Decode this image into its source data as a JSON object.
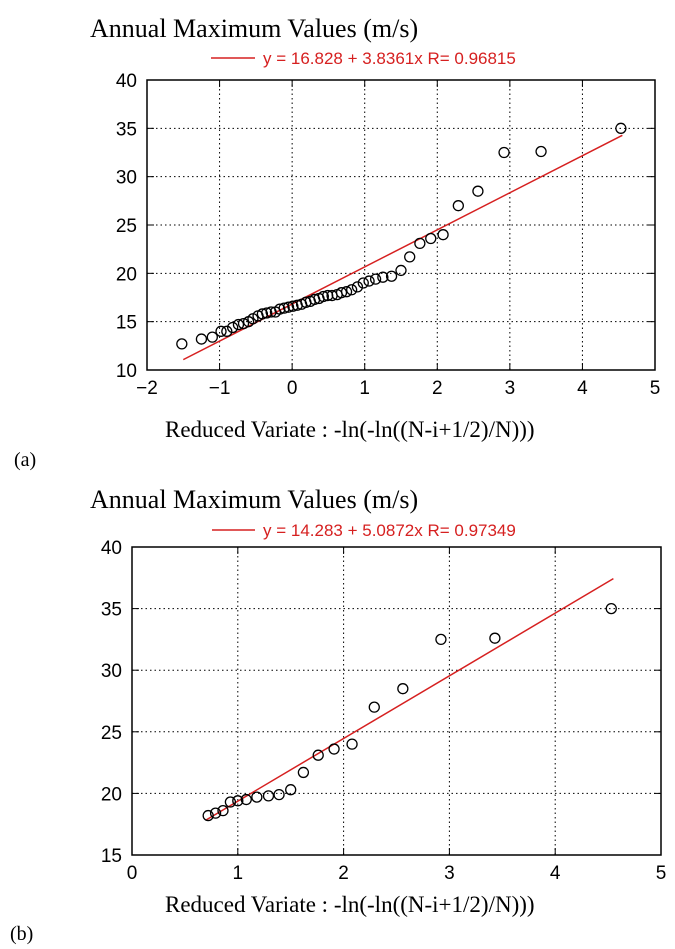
{
  "chart_data": [
    {
      "type": "scatter",
      "panel_label": "(a)",
      "title": "Annual Maximum Values (m/s)",
      "xlabel": "Reduced Variate : -ln(-ln((N-i+1/2)/N)))",
      "ylabel": "",
      "xlim": [
        -2,
        5
      ],
      "ylim": [
        10,
        40
      ],
      "xticks": [
        "−2",
        "−1",
        "0",
        "1",
        "2",
        "3",
        "4",
        "5"
      ],
      "yticks": [
        "10",
        "15",
        "20",
        "25",
        "30",
        "35",
        "40"
      ],
      "grid": true,
      "legend": {
        "text": "y = 16.828 + 3.8361x    R= 0.96815",
        "color": "#d62020"
      },
      "fit": {
        "intercept": 16.828,
        "slope": 3.8361,
        "x_range": [
          -1.5,
          4.55
        ]
      },
      "points": [
        [
          -1.52,
          12.7
        ],
        [
          -1.25,
          13.2
        ],
        [
          -1.1,
          13.4
        ],
        [
          -0.98,
          14.0
        ],
        [
          -0.9,
          14.0
        ],
        [
          -0.82,
          14.4
        ],
        [
          -0.74,
          14.7
        ],
        [
          -0.67,
          14.8
        ],
        [
          -0.6,
          15.0
        ],
        [
          -0.54,
          15.3
        ],
        [
          -0.47,
          15.6
        ],
        [
          -0.41,
          15.8
        ],
        [
          -0.35,
          15.9
        ],
        [
          -0.29,
          16.0
        ],
        [
          -0.23,
          16.0
        ],
        [
          -0.17,
          16.3
        ],
        [
          -0.11,
          16.4
        ],
        [
          -0.05,
          16.5
        ],
        [
          0.01,
          16.6
        ],
        [
          0.07,
          16.7
        ],
        [
          0.13,
          16.8
        ],
        [
          0.19,
          17.0
        ],
        [
          0.25,
          17.1
        ],
        [
          0.31,
          17.3
        ],
        [
          0.37,
          17.4
        ],
        [
          0.43,
          17.6
        ],
        [
          0.49,
          17.7
        ],
        [
          0.55,
          17.7
        ],
        [
          0.62,
          17.8
        ],
        [
          0.68,
          18.0
        ],
        [
          0.75,
          18.1
        ],
        [
          0.82,
          18.3
        ],
        [
          0.9,
          18.6
        ],
        [
          0.98,
          19.0
        ],
        [
          1.06,
          19.2
        ],
        [
          1.15,
          19.4
        ],
        [
          1.25,
          19.6
        ],
        [
          1.37,
          19.7
        ],
        [
          1.5,
          20.3
        ],
        [
          1.62,
          21.7
        ],
        [
          1.76,
          23.1
        ],
        [
          1.91,
          23.6
        ],
        [
          2.08,
          24.0
        ],
        [
          2.29,
          27.0
        ],
        [
          2.56,
          28.5
        ],
        [
          2.92,
          32.5
        ],
        [
          3.43,
          32.6
        ],
        [
          4.53,
          35.0
        ]
      ]
    },
    {
      "type": "scatter",
      "panel_label": "(b)",
      "title": "Annual Maximum Values (m/s)",
      "xlabel": "Reduced Variate : -ln(-ln((N-i+1/2)/N)))",
      "ylabel": "",
      "xlim": [
        0,
        5
      ],
      "ylim": [
        15,
        40
      ],
      "xticks": [
        "0",
        "1",
        "2",
        "3",
        "4",
        "5"
      ],
      "yticks": [
        "15",
        "20",
        "25",
        "30",
        "35",
        "40"
      ],
      "grid": true,
      "legend": {
        "text": "y = 14.283 + 5.0872x    R= 0.97349",
        "color": "#d62020"
      },
      "fit": {
        "intercept": 14.283,
        "slope": 5.0872,
        "x_range": [
          0.7,
          4.55
        ]
      },
      "points": [
        [
          0.72,
          18.2
        ],
        [
          0.79,
          18.4
        ],
        [
          0.86,
          18.6
        ],
        [
          0.93,
          19.3
        ],
        [
          1.0,
          19.4
        ],
        [
          1.08,
          19.5
        ],
        [
          1.18,
          19.7
        ],
        [
          1.29,
          19.8
        ],
        [
          1.39,
          19.9
        ],
        [
          1.5,
          20.3
        ],
        [
          1.62,
          21.7
        ],
        [
          1.76,
          23.1
        ],
        [
          1.91,
          23.6
        ],
        [
          2.08,
          24.0
        ],
        [
          2.29,
          27.0
        ],
        [
          2.56,
          28.5
        ],
        [
          2.92,
          32.5
        ],
        [
          3.43,
          32.6
        ],
        [
          4.53,
          35.0
        ]
      ]
    }
  ]
}
